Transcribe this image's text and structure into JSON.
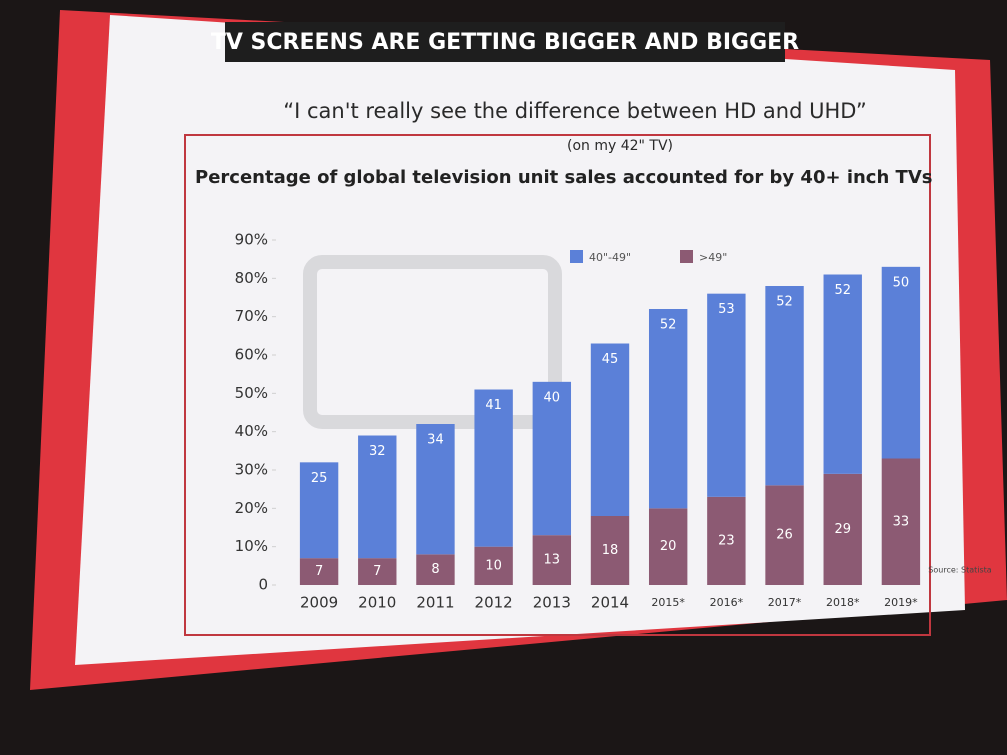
{
  "slide": {
    "heading": "TV SCREENS ARE GETTING BIGGER AND BIGGER",
    "quote": "“I can't really see the difference between HD and UHD”",
    "note": "(on my 42\" TV)"
  },
  "chart_data": {
    "type": "stacked-bar",
    "title": "Percentage of global television unit sales accounted for by 40+ inch TVs",
    "source": "Source: Statista",
    "categories": [
      "2009",
      "2010",
      "2011",
      "2012",
      "2013",
      "2014",
      "2015*",
      "2016*",
      "2017*",
      "2018*",
      "2019*"
    ],
    "series": [
      {
        "name": ">49\"",
        "color": "#8c5a73",
        "values": [
          7,
          7,
          8,
          10,
          13,
          18,
          20,
          23,
          26,
          29,
          33
        ]
      },
      {
        "name": "40\"-49\"",
        "color": "#5b80d8",
        "values": [
          25,
          32,
          34,
          41,
          40,
          45,
          52,
          53,
          52,
          52,
          50
        ]
      }
    ],
    "ylim": [
      0,
      90
    ],
    "yticks": [
      0,
      {
        "value": 10,
        "label": "10%"
      },
      {
        "value": 20,
        "label": "20%"
      },
      {
        "value": 30,
        "label": "30%"
      },
      {
        "value": 40,
        "label": "40%"
      },
      {
        "value": 50,
        "label": "50%"
      },
      {
        "value": 60,
        "label": "60%"
      },
      {
        "value": 70,
        "label": "70%"
      },
      {
        "value": 80,
        "label": "80%"
      },
      {
        "value": 90,
        "label": "90%"
      }
    ],
    "grid": false,
    "legend": "top-right"
  }
}
